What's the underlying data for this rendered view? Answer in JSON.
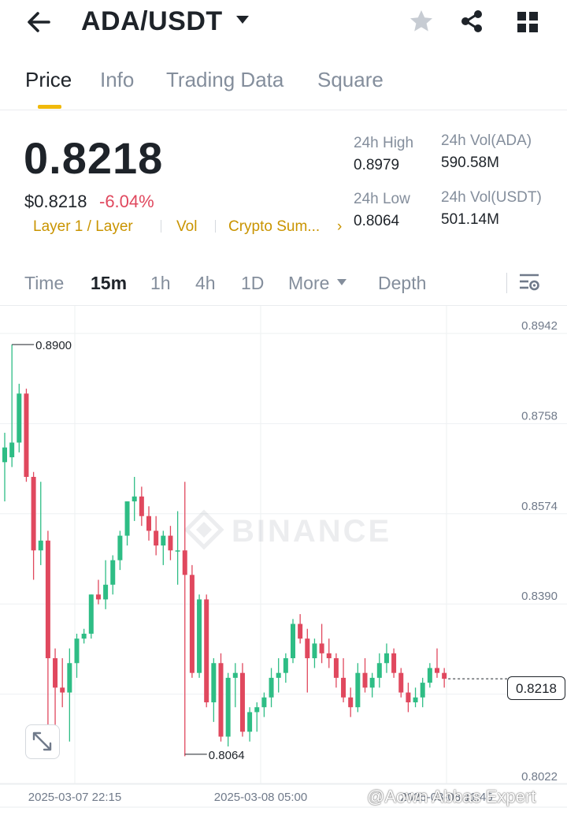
{
  "header": {
    "pair": "ADA/USDT",
    "icons": [
      "back-arrow-icon",
      "caret-down-icon",
      "star-icon",
      "share-icon",
      "grid-icon"
    ]
  },
  "tabs": [
    {
      "label": "Price",
      "active": true
    },
    {
      "label": "Info",
      "active": false
    },
    {
      "label": "Trading Data",
      "active": false
    },
    {
      "label": "Square",
      "active": false
    }
  ],
  "price": {
    "last": "0.8218",
    "usd": "$0.8218",
    "change": "-6.04%",
    "tags": [
      "Layer 1 / Layer",
      "Vol",
      "Crypto Sum..."
    ]
  },
  "stats": {
    "high_label": "24h High",
    "high_value": "0.8979",
    "low_label": "24h Low",
    "low_value": "0.8064",
    "vol_base_label": "24h Vol(ADA)",
    "vol_base_value": "590.58M",
    "vol_quote_label": "24h Vol(USDT)",
    "vol_quote_value": "501.14M"
  },
  "timeframes": {
    "items": [
      "Time",
      "15m",
      "1h",
      "4h",
      "1D",
      "More",
      "Depth"
    ],
    "active": "15m"
  },
  "colors": {
    "up": "#2ebd85",
    "down": "#e0485e",
    "accent": "#f0b90b"
  },
  "chart_data": {
    "type": "candlestick",
    "interval": "15m",
    "watermark": "BINANCE",
    "ylim": [
      0.8022,
      0.8942
    ],
    "y_ticks": [
      "0.8942",
      "0.8758",
      "0.8574",
      "0.8390",
      "0.8206",
      "0.8022"
    ],
    "x_ticks": [
      "2025-03-07 22:15",
      "2025-03-08 05:00",
      "2025-03-08 11:45"
    ],
    "max_label": "0.8900",
    "min_label": "0.8064",
    "current_price": "0.8218",
    "candles": [
      {
        "o": 0.866,
        "h": 0.872,
        "l": 0.858,
        "c": 0.869
      },
      {
        "o": 0.867,
        "h": 0.89,
        "l": 0.865,
        "c": 0.87
      },
      {
        "o": 0.87,
        "h": 0.882,
        "l": 0.868,
        "c": 0.88
      },
      {
        "o": 0.88,
        "h": 0.881,
        "l": 0.862,
        "c": 0.863
      },
      {
        "o": 0.863,
        "h": 0.864,
        "l": 0.842,
        "c": 0.848
      },
      {
        "o": 0.848,
        "h": 0.862,
        "l": 0.845,
        "c": 0.85
      },
      {
        "o": 0.85,
        "h": 0.852,
        "l": 0.806,
        "c": 0.826
      },
      {
        "o": 0.826,
        "h": 0.828,
        "l": 0.806,
        "c": 0.82
      },
      {
        "o": 0.82,
        "h": 0.826,
        "l": 0.816,
        "c": 0.819
      },
      {
        "o": 0.819,
        "h": 0.828,
        "l": 0.809,
        "c": 0.825
      },
      {
        "o": 0.825,
        "h": 0.831,
        "l": 0.822,
        "c": 0.83
      },
      {
        "o": 0.83,
        "h": 0.832,
        "l": 0.829,
        "c": 0.831
      },
      {
        "o": 0.831,
        "h": 0.839,
        "l": 0.83,
        "c": 0.839
      },
      {
        "o": 0.839,
        "h": 0.842,
        "l": 0.837,
        "c": 0.838
      },
      {
        "o": 0.838,
        "h": 0.846,
        "l": 0.836,
        "c": 0.841
      },
      {
        "o": 0.841,
        "h": 0.847,
        "l": 0.839,
        "c": 0.846
      },
      {
        "o": 0.846,
        "h": 0.852,
        "l": 0.844,
        "c": 0.851
      },
      {
        "o": 0.851,
        "h": 0.858,
        "l": 0.849,
        "c": 0.858
      },
      {
        "o": 0.858,
        "h": 0.863,
        "l": 0.854,
        "c": 0.859
      },
      {
        "o": 0.859,
        "h": 0.861,
        "l": 0.853,
        "c": 0.855
      },
      {
        "o": 0.855,
        "h": 0.857,
        "l": 0.85,
        "c": 0.852
      },
      {
        "o": 0.852,
        "h": 0.855,
        "l": 0.847,
        "c": 0.849
      },
      {
        "o": 0.849,
        "h": 0.852,
        "l": 0.845,
        "c": 0.851
      },
      {
        "o": 0.851,
        "h": 0.853,
        "l": 0.846,
        "c": 0.848
      },
      {
        "o": 0.848,
        "h": 0.856,
        "l": 0.841,
        "c": 0.848
      },
      {
        "o": 0.848,
        "h": 0.862,
        "l": 0.806,
        "c": 0.843
      },
      {
        "o": 0.843,
        "h": 0.845,
        "l": 0.822,
        "c": 0.823
      },
      {
        "o": 0.823,
        "h": 0.839,
        "l": 0.822,
        "c": 0.838
      },
      {
        "o": 0.838,
        "h": 0.839,
        "l": 0.816,
        "c": 0.817
      },
      {
        "o": 0.817,
        "h": 0.826,
        "l": 0.813,
        "c": 0.825
      },
      {
        "o": 0.825,
        "h": 0.827,
        "l": 0.809,
        "c": 0.81
      },
      {
        "o": 0.81,
        "h": 0.823,
        "l": 0.808,
        "c": 0.822
      },
      {
        "o": 0.822,
        "h": 0.825,
        "l": 0.816,
        "c": 0.823
      },
      {
        "o": 0.823,
        "h": 0.825,
        "l": 0.81,
        "c": 0.811
      },
      {
        "o": 0.811,
        "h": 0.816,
        "l": 0.809,
        "c": 0.815
      },
      {
        "o": 0.815,
        "h": 0.817,
        "l": 0.811,
        "c": 0.816
      },
      {
        "o": 0.816,
        "h": 0.819,
        "l": 0.814,
        "c": 0.818
      },
      {
        "o": 0.818,
        "h": 0.824,
        "l": 0.816,
        "c": 0.822
      },
      {
        "o": 0.822,
        "h": 0.826,
        "l": 0.819,
        "c": 0.823
      },
      {
        "o": 0.823,
        "h": 0.827,
        "l": 0.821,
        "c": 0.826
      },
      {
        "o": 0.826,
        "h": 0.834,
        "l": 0.825,
        "c": 0.833
      },
      {
        "o": 0.833,
        "h": 0.835,
        "l": 0.829,
        "c": 0.83
      },
      {
        "o": 0.83,
        "h": 0.832,
        "l": 0.819,
        "c": 0.826
      },
      {
        "o": 0.826,
        "h": 0.83,
        "l": 0.824,
        "c": 0.829
      },
      {
        "o": 0.829,
        "h": 0.833,
        "l": 0.825,
        "c": 0.827
      },
      {
        "o": 0.827,
        "h": 0.83,
        "l": 0.824,
        "c": 0.826
      },
      {
        "o": 0.826,
        "h": 0.827,
        "l": 0.82,
        "c": 0.822
      },
      {
        "o": 0.822,
        "h": 0.826,
        "l": 0.817,
        "c": 0.818
      },
      {
        "o": 0.818,
        "h": 0.82,
        "l": 0.814,
        "c": 0.816
      },
      {
        "o": 0.816,
        "h": 0.825,
        "l": 0.815,
        "c": 0.823
      },
      {
        "o": 0.823,
        "h": 0.826,
        "l": 0.819,
        "c": 0.82
      },
      {
        "o": 0.82,
        "h": 0.823,
        "l": 0.818,
        "c": 0.822
      },
      {
        "o": 0.822,
        "h": 0.827,
        "l": 0.82,
        "c": 0.825
      },
      {
        "o": 0.825,
        "h": 0.829,
        "l": 0.823,
        "c": 0.827
      },
      {
        "o": 0.827,
        "h": 0.828,
        "l": 0.822,
        "c": 0.823
      },
      {
        "o": 0.823,
        "h": 0.824,
        "l": 0.818,
        "c": 0.819
      },
      {
        "o": 0.819,
        "h": 0.821,
        "l": 0.815,
        "c": 0.817
      },
      {
        "o": 0.817,
        "h": 0.82,
        "l": 0.816,
        "c": 0.818
      },
      {
        "o": 0.818,
        "h": 0.822,
        "l": 0.816,
        "c": 0.821
      },
      {
        "o": 0.821,
        "h": 0.825,
        "l": 0.82,
        "c": 0.824
      },
      {
        "o": 0.824,
        "h": 0.828,
        "l": 0.822,
        "c": 0.823
      },
      {
        "o": 0.823,
        "h": 0.824,
        "l": 0.82,
        "c": 0.8218
      }
    ]
  },
  "watermark_overlay": "@Aown Abbas Expert"
}
